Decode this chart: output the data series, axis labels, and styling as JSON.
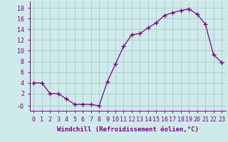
{
  "x": [
    0,
    1,
    2,
    3,
    4,
    5,
    6,
    7,
    8,
    9,
    10,
    11,
    12,
    13,
    14,
    15,
    16,
    17,
    18,
    19,
    20,
    21,
    22,
    23
  ],
  "y": [
    4.0,
    4.0,
    2.0,
    2.0,
    1.0,
    0.0,
    0.0,
    0.0,
    -0.3,
    4.2,
    7.5,
    10.8,
    13.0,
    13.2,
    14.3,
    15.2,
    16.6,
    17.1,
    17.5,
    17.8,
    16.8,
    15.0,
    9.3,
    7.8
  ],
  "line_color": "#800080",
  "marker": "+",
  "marker_size": 4,
  "bg_color": "#ceeaea",
  "grid_color": "#aacccc",
  "xlabel": "Windchill (Refroidissement éolien,°C)",
  "ylabel_ticks": [
    "-0",
    "2",
    "4",
    "6",
    "8",
    "10",
    "12",
    "14",
    "16",
    "18"
  ],
  "yticks": [
    -0.3,
    2,
    4,
    6,
    8,
    10,
    12,
    14,
    16,
    18
  ],
  "ylim": [
    -1.2,
    19.2
  ],
  "xlim": [
    -0.5,
    23.5
  ],
  "xticks": [
    0,
    1,
    2,
    3,
    4,
    5,
    6,
    7,
    8,
    9,
    10,
    11,
    12,
    13,
    14,
    15,
    16,
    17,
    18,
    19,
    20,
    21,
    22,
    23
  ],
  "label_fontsize": 6.5,
  "tick_fontsize": 6.0
}
